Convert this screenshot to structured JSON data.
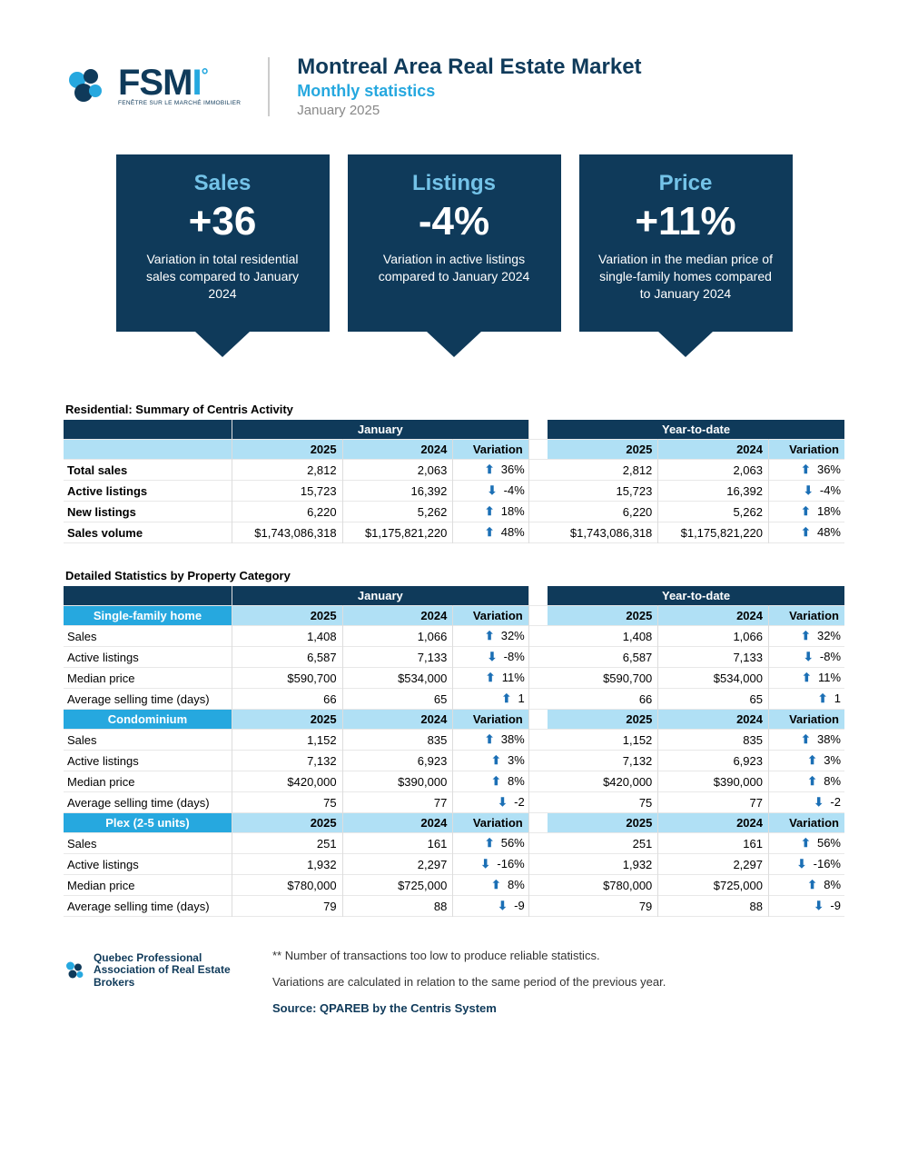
{
  "header": {
    "logo_main": "FSM",
    "logo_tagline": "FENÊTRE SUR LE MARCHÉ IMMOBILIER",
    "title": "Montreal Area Real Estate Market",
    "subtitle": "Monthly statistics",
    "date": "January 2025"
  },
  "colors": {
    "dark_navy": "#0f3a5a",
    "accent_blue": "#26a8df",
    "light_blue": "#b0e0f5",
    "arrow_blue": "#1b6fb5"
  },
  "cards": [
    {
      "title": "Sales",
      "value": "+36",
      "desc": "Variation in total residential sales compared to January 2024"
    },
    {
      "title": "Listings",
      "value": "-4%",
      "desc": "Variation in active listings compared to January 2024"
    },
    {
      "title": "Price",
      "value": "+11%",
      "desc": "Variation in the median price of single-family homes compared to January 2024"
    }
  ],
  "summary": {
    "title": "Residential: Summary of Centris Activity",
    "period1": "January",
    "period2": "Year-to-date",
    "col_y1": "2025",
    "col_y2": "2024",
    "col_var": "Variation",
    "rows": [
      {
        "label": "Total sales",
        "a1": "2,812",
        "a2": "2,063",
        "av": "36%",
        "ad": "up",
        "b1": "2,812",
        "b2": "2,063",
        "bv": "36%",
        "bd": "up"
      },
      {
        "label": "Active listings",
        "a1": "15,723",
        "a2": "16,392",
        "av": "-4%",
        "ad": "down",
        "b1": "15,723",
        "b2": "16,392",
        "bv": "-4%",
        "bd": "down"
      },
      {
        "label": "New listings",
        "a1": "6,220",
        "a2": "5,262",
        "av": "18%",
        "ad": "up",
        "b1": "6,220",
        "b2": "5,262",
        "bv": "18%",
        "bd": "up"
      },
      {
        "label": "Sales volume",
        "a1": "$1,743,086,318",
        "a2": "$1,175,821,220",
        "av": "48%",
        "ad": "up",
        "b1": "$1,743,086,318",
        "b2": "$1,175,821,220",
        "bv": "48%",
        "bd": "up"
      }
    ]
  },
  "detail": {
    "title": "Detailed Statistics by Property Category",
    "period1": "January",
    "period2": "Year-to-date",
    "col_y1": "2025",
    "col_y2": "2024",
    "col_var": "Variation",
    "categories": [
      {
        "name": "Single-family home",
        "rows": [
          {
            "label": "Sales",
            "a1": "1,408",
            "a2": "1,066",
            "av": "32%",
            "ad": "up",
            "b1": "1,408",
            "b2": "1,066",
            "bv": "32%",
            "bd": "up"
          },
          {
            "label": "Active listings",
            "a1": "6,587",
            "a2": "7,133",
            "av": "-8%",
            "ad": "down",
            "b1": "6,587",
            "b2": "7,133",
            "bv": "-8%",
            "bd": "down"
          },
          {
            "label": "Median price",
            "a1": "$590,700",
            "a2": "$534,000",
            "av": "11%",
            "ad": "up",
            "b1": "$590,700",
            "b2": "$534,000",
            "bv": "11%",
            "bd": "up"
          },
          {
            "label": "Average selling time (days)",
            "a1": "66",
            "a2": "65",
            "av": "1",
            "ad": "up",
            "b1": "66",
            "b2": "65",
            "bv": "1",
            "bd": "up"
          }
        ]
      },
      {
        "name": "Condominium",
        "rows": [
          {
            "label": "Sales",
            "a1": "1,152",
            "a2": "835",
            "av": "38%",
            "ad": "up",
            "b1": "1,152",
            "b2": "835",
            "bv": "38%",
            "bd": "up"
          },
          {
            "label": "Active listings",
            "a1": "7,132",
            "a2": "6,923",
            "av": "3%",
            "ad": "up",
            "b1": "7,132",
            "b2": "6,923",
            "bv": "3%",
            "bd": "up"
          },
          {
            "label": "Median price",
            "a1": "$420,000",
            "a2": "$390,000",
            "av": "8%",
            "ad": "up",
            "b1": "$420,000",
            "b2": "$390,000",
            "bv": "8%",
            "bd": "up"
          },
          {
            "label": "Average selling time (days)",
            "a1": "75",
            "a2": "77",
            "av": "-2",
            "ad": "down",
            "b1": "75",
            "b2": "77",
            "bv": "-2",
            "bd": "down"
          }
        ]
      },
      {
        "name": "Plex (2-5 units)",
        "rows": [
          {
            "label": "Sales",
            "a1": "251",
            "a2": "161",
            "av": "56%",
            "ad": "up",
            "b1": "251",
            "b2": "161",
            "bv": "56%",
            "bd": "up"
          },
          {
            "label": "Active listings",
            "a1": "1,932",
            "a2": "2,297",
            "av": "-16%",
            "ad": "down",
            "b1": "1,932",
            "b2": "2,297",
            "bv": "-16%",
            "bd": "down"
          },
          {
            "label": "Median price",
            "a1": "$780,000",
            "a2": "$725,000",
            "av": "8%",
            "ad": "up",
            "b1": "$780,000",
            "b2": "$725,000",
            "bv": "8%",
            "bd": "up"
          },
          {
            "label": "Average selling time (days)",
            "a1": "79",
            "a2": "88",
            "av": "-9",
            "ad": "down",
            "b1": "79",
            "b2": "88",
            "bv": "-9",
            "bd": "down"
          }
        ]
      }
    ]
  },
  "footer": {
    "org": "Quebec Professional Association of Real Estate Brokers",
    "note1": "**  Number of transactions too low to produce reliable statistics.",
    "note2": "Variations are calculated in relation to the same period of the previous year.",
    "source": "Source: QPAREB by the Centris System"
  }
}
